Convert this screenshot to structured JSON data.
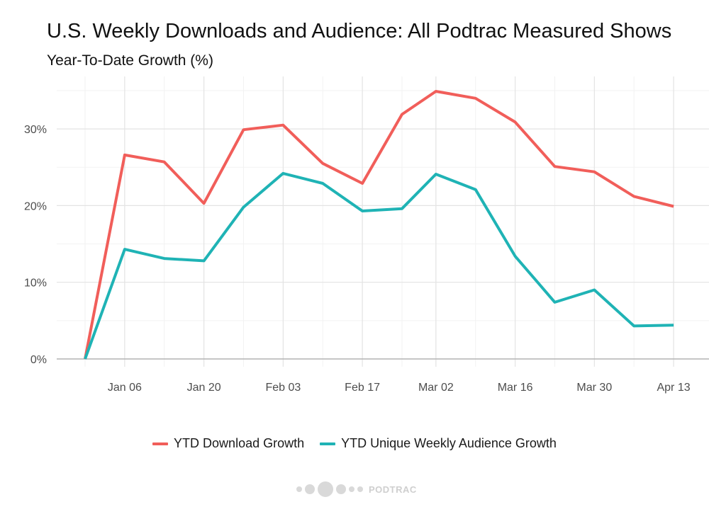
{
  "chart_data": {
    "type": "line",
    "title": "U.S. Weekly Downloads and Audience: All Podtrac Measured Shows",
    "subtitle": "Year-To-Date Growth (%)",
    "xlabel": "",
    "ylabel": "",
    "x": [
      "2018-12-30",
      "2019-01-06",
      "2019-01-13",
      "2019-01-20",
      "2019-01-27",
      "2019-02-03",
      "2019-02-10",
      "2019-02-17",
      "2019-02-24",
      "2019-03-02",
      "2019-03-09",
      "2019-03-16",
      "2019-03-23",
      "2019-03-30",
      "2019-04-06",
      "2019-04-13"
    ],
    "x_tick_labels": [
      "Jan 06",
      "Jan 20",
      "Feb 03",
      "Feb 17",
      "Mar 02",
      "Mar 16",
      "Mar 30",
      "Apr 13"
    ],
    "y_tick_labels": [
      "0%",
      "10%",
      "20%",
      "30%"
    ],
    "y_ticks": [
      0,
      10,
      20,
      30
    ],
    "ylim": [
      -1,
      36
    ],
    "grid": true,
    "legend_position": "bottom",
    "series": [
      {
        "name": "YTD Download Growth",
        "color": "#F15E5A",
        "values": [
          0,
          26.6,
          25.7,
          20.3,
          29.9,
          30.5,
          25.5,
          22.9,
          31.9,
          34.9,
          34.0,
          30.9,
          25.1,
          24.4,
          21.2,
          19.9
        ]
      },
      {
        "name": "YTD Unique Weekly Audience Growth",
        "color": "#1FB3B5",
        "values": [
          0,
          14.3,
          13.1,
          12.8,
          19.8,
          24.2,
          22.9,
          19.3,
          19.6,
          24.1,
          22.1,
          13.4,
          7.4,
          9.0,
          4.3,
          4.4
        ]
      }
    ]
  },
  "logo": {
    "text": "PODTRAC"
  }
}
